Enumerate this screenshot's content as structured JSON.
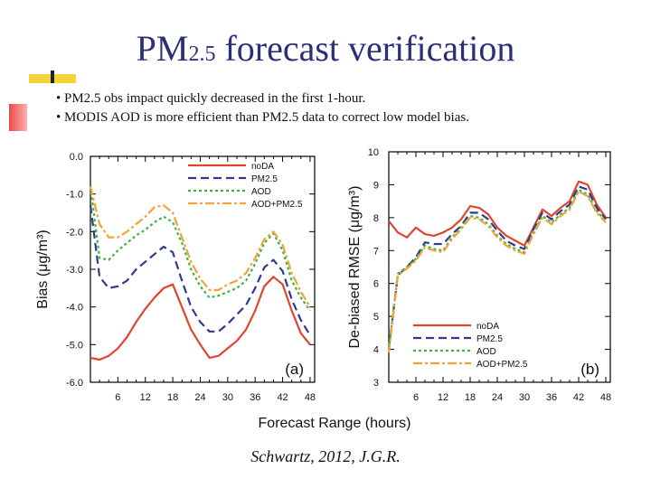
{
  "slide": {
    "title_main_pre": "PM",
    "title_sub": "2.5",
    "title_main_post": " forecast verification",
    "bullets": [
      "• PM2.5 obs impact quickly decreased in the first 1-hour.",
      "• MODIS AOD is more efficient than PM2.5 data to correct low model bias."
    ],
    "xlabel": "Forecast Range (hours)",
    "citation": "Schwartz, 2012, J.G.R."
  },
  "colors": {
    "noDA": "#e0452e",
    "PM2.5": "#2f3a8f",
    "AOD": "#3fb540",
    "AOD+PM2.5": "#f0a33a"
  },
  "chart_data": [
    {
      "type": "line",
      "panel_label": "(a)",
      "ylabel": "Bias (μg/m³)",
      "xlabel": "Forecast Range (hours)",
      "xlim": [
        0,
        49
      ],
      "ylim": [
        -6,
        0
      ],
      "xticks": [
        6,
        12,
        18,
        24,
        30,
        36,
        42,
        48
      ],
      "yticks": [
        0,
        -1,
        -2,
        -3,
        -4,
        -5,
        -6
      ],
      "ytick_labels": [
        "0.0",
        "-1.0",
        "-2.0",
        "-3.0",
        "-4.0",
        "-5.0",
        "-6.0"
      ],
      "legend": [
        "noDA",
        "PM2.5",
        "AOD",
        "AOD+PM2.5"
      ],
      "legend_position": "top-right",
      "x": [
        0,
        2,
        4,
        6,
        8,
        10,
        12,
        14,
        16,
        18,
        20,
        22,
        24,
        26,
        28,
        30,
        32,
        34,
        36,
        38,
        40,
        42,
        44,
        46,
        48
      ],
      "series": [
        {
          "name": "noDA",
          "values": [
            -5.35,
            -5.4,
            -5.3,
            -5.1,
            -4.8,
            -4.4,
            -4.05,
            -3.75,
            -3.5,
            -3.4,
            -4.0,
            -4.6,
            -5.0,
            -5.35,
            -5.3,
            -5.1,
            -4.9,
            -4.6,
            -4.1,
            -3.45,
            -3.2,
            -3.4,
            -4.1,
            -4.7,
            -5.0
          ]
        },
        {
          "name": "PM2.5",
          "values": [
            -1.3,
            -3.2,
            -3.5,
            -3.45,
            -3.3,
            -3.0,
            -2.8,
            -2.6,
            -2.4,
            -2.55,
            -3.3,
            -4.0,
            -4.4,
            -4.65,
            -4.65,
            -4.45,
            -4.2,
            -3.95,
            -3.5,
            -2.95,
            -2.75,
            -3.05,
            -3.8,
            -4.35,
            -4.75
          ]
        },
        {
          "name": "AOD",
          "values": [
            -0.8,
            -2.7,
            -2.75,
            -2.5,
            -2.3,
            -2.1,
            -1.95,
            -1.75,
            -1.6,
            -1.75,
            -2.3,
            -3.0,
            -3.45,
            -3.75,
            -3.7,
            -3.6,
            -3.5,
            -3.3,
            -2.85,
            -2.3,
            -2.05,
            -2.5,
            -3.3,
            -3.75,
            -4.1
          ]
        },
        {
          "name": "AOD+PM2.5",
          "values": [
            -0.8,
            -1.8,
            -2.15,
            -2.15,
            -2.0,
            -1.8,
            -1.6,
            -1.35,
            -1.3,
            -1.5,
            -2.15,
            -2.8,
            -3.25,
            -3.55,
            -3.55,
            -3.4,
            -3.3,
            -3.1,
            -2.7,
            -2.2,
            -2.0,
            -2.35,
            -3.1,
            -3.6,
            -4.0
          ]
        }
      ]
    },
    {
      "type": "line",
      "panel_label": "(b)",
      "ylabel": "De-biased RMSE (μg/m³)",
      "xlabel": "Forecast Range (hours)",
      "xlim": [
        0,
        49
      ],
      "ylim": [
        3,
        10
      ],
      "xticks": [
        6,
        12,
        18,
        24,
        30,
        36,
        42,
        48
      ],
      "yticks": [
        3,
        4,
        5,
        6,
        7,
        8,
        9,
        10
      ],
      "ytick_labels": [
        "3",
        "4",
        "5",
        "6",
        "7",
        "8",
        "9",
        "10"
      ],
      "legend": [
        "noDA",
        "PM2.5",
        "AOD",
        "AOD+PM2.5"
      ],
      "legend_position": "bottom-right",
      "x": [
        0,
        2,
        4,
        6,
        8,
        10,
        12,
        14,
        16,
        18,
        20,
        22,
        24,
        26,
        28,
        30,
        32,
        34,
        36,
        38,
        40,
        42,
        44,
        46,
        48
      ],
      "series": [
        {
          "name": "noDA",
          "values": [
            7.9,
            7.55,
            7.4,
            7.7,
            7.5,
            7.45,
            7.55,
            7.7,
            7.95,
            8.35,
            8.3,
            8.1,
            7.7,
            7.45,
            7.3,
            7.15,
            7.7,
            8.25,
            8.05,
            8.3,
            8.5,
            9.1,
            9.0,
            8.4,
            8.0
          ]
        },
        {
          "name": "PM2.5",
          "values": [
            4.0,
            6.25,
            6.5,
            6.8,
            7.25,
            7.2,
            7.2,
            7.5,
            7.75,
            8.15,
            8.15,
            7.95,
            7.6,
            7.3,
            7.15,
            7.05,
            7.65,
            8.15,
            7.95,
            8.2,
            8.4,
            8.95,
            8.85,
            8.3,
            7.95
          ]
        },
        {
          "name": "AOD",
          "values": [
            4.0,
            6.3,
            6.5,
            6.75,
            7.15,
            7.05,
            7.0,
            7.4,
            7.7,
            8.05,
            8.0,
            7.8,
            7.45,
            7.2,
            7.05,
            6.95,
            7.55,
            8.05,
            7.85,
            8.1,
            8.3,
            8.85,
            8.7,
            8.2,
            7.9
          ]
        },
        {
          "name": "AOD+PM2.5",
          "values": [
            3.9,
            6.25,
            6.45,
            6.7,
            7.1,
            7.0,
            6.95,
            7.35,
            7.65,
            8.0,
            7.95,
            7.75,
            7.4,
            7.15,
            7.0,
            6.9,
            7.5,
            8.0,
            7.8,
            8.05,
            8.25,
            8.8,
            8.65,
            8.15,
            7.85
          ]
        }
      ]
    }
  ]
}
